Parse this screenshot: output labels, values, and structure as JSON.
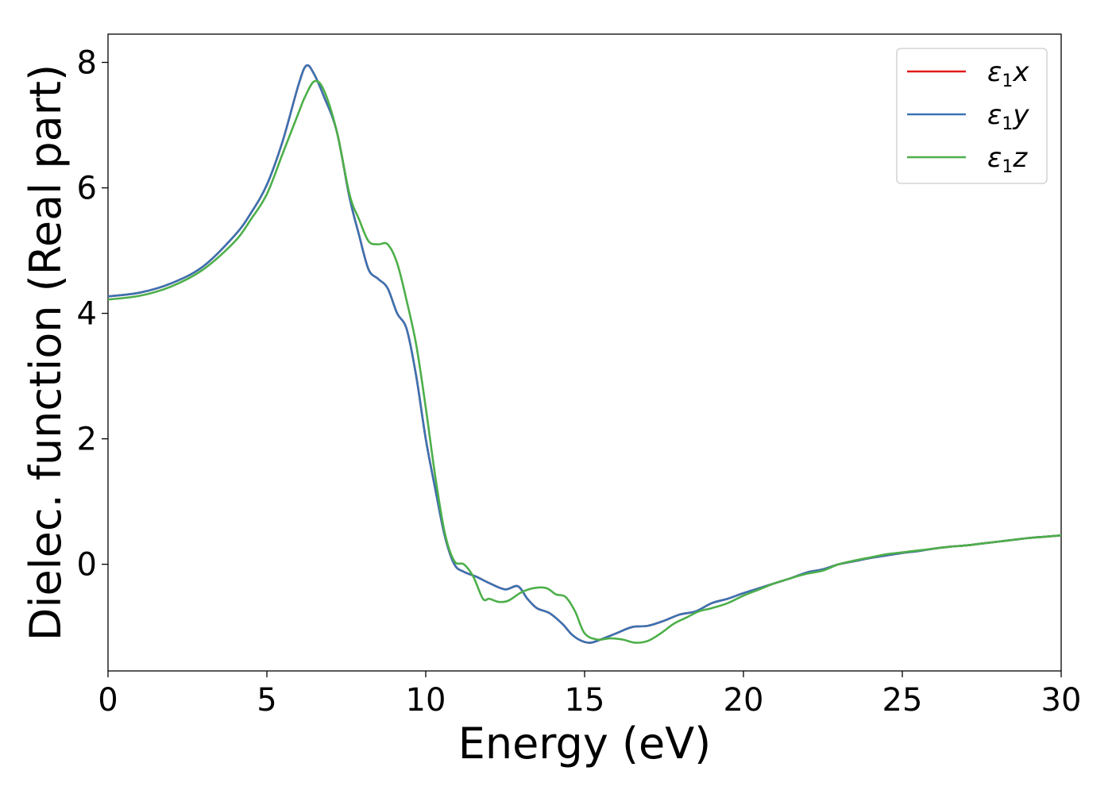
{
  "chart_data": {
    "type": "line",
    "xlabel": "Energy (eV)",
    "ylabel": "Dielec. function (Real part)",
    "xlim": [
      0,
      30
    ],
    "ylim": [
      -1.7,
      8.45
    ],
    "xticks": [
      0,
      5,
      10,
      15,
      20,
      25,
      30
    ],
    "yticks": [
      0,
      2,
      4,
      6,
      8
    ],
    "grid": false,
    "legend_position": "top-right",
    "series": [
      {
        "name": "ε1x",
        "legend": {
          "symbol": "ε",
          "sub": "1",
          "var": "x"
        },
        "color": "#e41a1c",
        "x": [
          0,
          1,
          2,
          3,
          4,
          4.5,
          5,
          5.5,
          6,
          6.25,
          6.5,
          6.8,
          7.2,
          7.6,
          7.9,
          8.2,
          8.5,
          8.8,
          9.1,
          9.4,
          9.7,
          10,
          10.3,
          10.6,
          10.9,
          11.2,
          11.6,
          12,
          12.5,
          12.9,
          13.2,
          13.5,
          13.9,
          14.3,
          14.6,
          14.9,
          15.2,
          15.6,
          16,
          16.5,
          17,
          17.5,
          18,
          18.5,
          19,
          19.5,
          20,
          20.5,
          21,
          21.5,
          22,
          22.5,
          23,
          23.5,
          24,
          24.5,
          25,
          25.5,
          26,
          26.5,
          27,
          27.5,
          28,
          28.5,
          29,
          29.5,
          30
        ],
        "y": [
          4.27,
          4.33,
          4.48,
          4.75,
          5.25,
          5.6,
          6.05,
          6.75,
          7.65,
          7.95,
          7.8,
          7.45,
          6.9,
          5.85,
          5.25,
          4.7,
          4.55,
          4.4,
          4.0,
          3.75,
          3.0,
          2.0,
          1.2,
          0.45,
          0.0,
          -0.12,
          -0.2,
          -0.3,
          -0.4,
          -0.35,
          -0.55,
          -0.7,
          -0.78,
          -0.95,
          -1.12,
          -1.22,
          -1.25,
          -1.18,
          -1.1,
          -1.0,
          -0.98,
          -0.9,
          -0.8,
          -0.75,
          -0.62,
          -0.55,
          -0.46,
          -0.38,
          -0.3,
          -0.22,
          -0.13,
          -0.08,
          0.0,
          0.05,
          0.1,
          0.14,
          0.18,
          0.21,
          0.25,
          0.28,
          0.3,
          0.33,
          0.36,
          0.39,
          0.42,
          0.44,
          0.46
        ]
      },
      {
        "name": "ε1y",
        "legend": {
          "symbol": "ε",
          "sub": "1",
          "var": "y"
        },
        "color": "#3a73b2",
        "x": [
          0,
          1,
          2,
          3,
          4,
          4.5,
          5,
          5.5,
          6,
          6.25,
          6.5,
          6.8,
          7.2,
          7.6,
          7.9,
          8.2,
          8.5,
          8.8,
          9.1,
          9.4,
          9.7,
          10,
          10.3,
          10.6,
          10.9,
          11.2,
          11.6,
          12,
          12.5,
          12.9,
          13.2,
          13.5,
          13.9,
          14.3,
          14.6,
          14.9,
          15.2,
          15.6,
          16,
          16.5,
          17,
          17.5,
          18,
          18.5,
          19,
          19.5,
          20,
          20.5,
          21,
          21.5,
          22,
          22.5,
          23,
          23.5,
          24,
          24.5,
          25,
          25.5,
          26,
          26.5,
          27,
          27.5,
          28,
          28.5,
          29,
          29.5,
          30
        ],
        "y": [
          4.27,
          4.33,
          4.48,
          4.75,
          5.25,
          5.6,
          6.05,
          6.75,
          7.65,
          7.95,
          7.8,
          7.45,
          6.9,
          5.85,
          5.25,
          4.7,
          4.55,
          4.4,
          4.0,
          3.75,
          3.0,
          2.0,
          1.2,
          0.45,
          0.0,
          -0.12,
          -0.2,
          -0.3,
          -0.4,
          -0.35,
          -0.55,
          -0.7,
          -0.78,
          -0.95,
          -1.12,
          -1.22,
          -1.25,
          -1.18,
          -1.1,
          -1.0,
          -0.98,
          -0.9,
          -0.8,
          -0.75,
          -0.62,
          -0.55,
          -0.46,
          -0.38,
          -0.3,
          -0.22,
          -0.13,
          -0.08,
          0.0,
          0.05,
          0.1,
          0.14,
          0.18,
          0.21,
          0.25,
          0.28,
          0.3,
          0.33,
          0.36,
          0.39,
          0.42,
          0.44,
          0.46
        ]
      },
      {
        "name": "ε1z",
        "legend": {
          "symbol": "ε",
          "sub": "1",
          "var": "z"
        },
        "color": "#4daf4a",
        "x": [
          0,
          1,
          2,
          3,
          4,
          4.5,
          5,
          5.5,
          6,
          6.2,
          6.5,
          6.8,
          7.2,
          7.6,
          7.9,
          8.2,
          8.5,
          8.8,
          9.1,
          9.4,
          9.7,
          10,
          10.3,
          10.6,
          10.9,
          11.2,
          11.5,
          11.8,
          12,
          12.3,
          12.6,
          13,
          13.4,
          13.8,
          14.1,
          14.4,
          14.7,
          15,
          15.4,
          15.8,
          16.2,
          16.6,
          17,
          17.4,
          17.8,
          18.2,
          18.6,
          19,
          19.5,
          20,
          20.5,
          21,
          21.5,
          22,
          22.5,
          23,
          23.5,
          24,
          24.5,
          25,
          25.5,
          26,
          26.5,
          27,
          27.5,
          28,
          28.5,
          29,
          29.5,
          30
        ],
        "y": [
          4.22,
          4.28,
          4.43,
          4.7,
          5.15,
          5.5,
          5.9,
          6.55,
          7.2,
          7.45,
          7.7,
          7.55,
          6.9,
          5.9,
          5.5,
          5.15,
          5.1,
          5.1,
          4.8,
          4.2,
          3.5,
          2.5,
          1.4,
          0.5,
          0.05,
          0.0,
          -0.2,
          -0.55,
          -0.55,
          -0.6,
          -0.58,
          -0.45,
          -0.38,
          -0.38,
          -0.48,
          -0.52,
          -0.75,
          -1.1,
          -1.2,
          -1.18,
          -1.2,
          -1.25,
          -1.22,
          -1.1,
          -0.95,
          -0.85,
          -0.75,
          -0.7,
          -0.62,
          -0.5,
          -0.4,
          -0.3,
          -0.22,
          -0.15,
          -0.1,
          0.0,
          0.06,
          0.11,
          0.16,
          0.19,
          0.22,
          0.25,
          0.28,
          0.3,
          0.33,
          0.36,
          0.39,
          0.42,
          0.44,
          0.46
        ]
      }
    ]
  }
}
